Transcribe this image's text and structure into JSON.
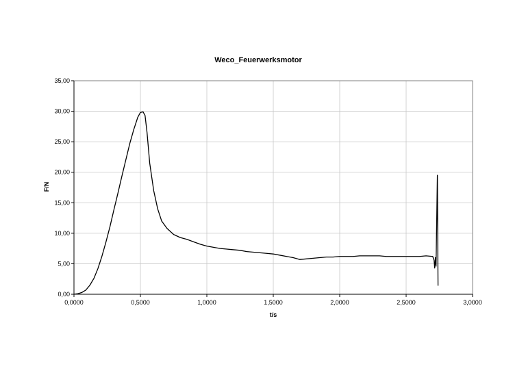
{
  "chart_data": {
    "type": "line",
    "title": "Weco_Feuerwerksmotor",
    "xlabel": "t/s",
    "ylabel": "F/N",
    "xlim": [
      0,
      3
    ],
    "ylim": [
      0,
      35
    ],
    "x_ticks": [
      "0,0000",
      "0,5000",
      "1,0000",
      "1,5000",
      "2,0000",
      "2,5000",
      "3,0000"
    ],
    "y_ticks": [
      "0,00",
      "5,00",
      "10,00",
      "15,00",
      "20,00",
      "25,00",
      "30,00",
      "35,00"
    ],
    "grid": true,
    "legend": "none",
    "series": [
      {
        "color": "#000000",
        "x": [
          0.0,
          0.03,
          0.06,
          0.09,
          0.12,
          0.15,
          0.18,
          0.21,
          0.24,
          0.27,
          0.3,
          0.33,
          0.36,
          0.39,
          0.42,
          0.45,
          0.48,
          0.5,
          0.52,
          0.535,
          0.55,
          0.57,
          0.6,
          0.63,
          0.66,
          0.7,
          0.75,
          0.8,
          0.85,
          0.9,
          0.95,
          1.0,
          1.05,
          1.1,
          1.15,
          1.2,
          1.25,
          1.3,
          1.35,
          1.4,
          1.45,
          1.5,
          1.55,
          1.6,
          1.65,
          1.7,
          1.75,
          1.8,
          1.85,
          1.9,
          1.95,
          2.0,
          2.05,
          2.1,
          2.15,
          2.2,
          2.25,
          2.3,
          2.35,
          2.4,
          2.45,
          2.5,
          2.55,
          2.6,
          2.65,
          2.7,
          2.71,
          2.715,
          2.72,
          2.725,
          2.73,
          2.735,
          2.74
        ],
        "y": [
          0.0,
          0.1,
          0.3,
          0.7,
          1.5,
          2.6,
          4.2,
          6.2,
          8.5,
          11.0,
          13.8,
          16.5,
          19.3,
          22.0,
          24.7,
          27.0,
          29.0,
          29.8,
          29.9,
          29.3,
          26.5,
          21.5,
          17.0,
          14.0,
          12.0,
          10.8,
          9.8,
          9.3,
          9.0,
          8.6,
          8.2,
          7.9,
          7.7,
          7.5,
          7.4,
          7.3,
          7.2,
          7.0,
          6.9,
          6.8,
          6.7,
          6.6,
          6.4,
          6.2,
          6.0,
          5.7,
          5.8,
          5.9,
          6.0,
          6.1,
          6.1,
          6.2,
          6.2,
          6.2,
          6.3,
          6.3,
          6.3,
          6.3,
          6.2,
          6.2,
          6.2,
          6.2,
          6.2,
          6.2,
          6.3,
          6.2,
          5.6,
          4.3,
          6.0,
          4.6,
          12.0,
          19.5,
          1.4
        ]
      }
    ]
  }
}
